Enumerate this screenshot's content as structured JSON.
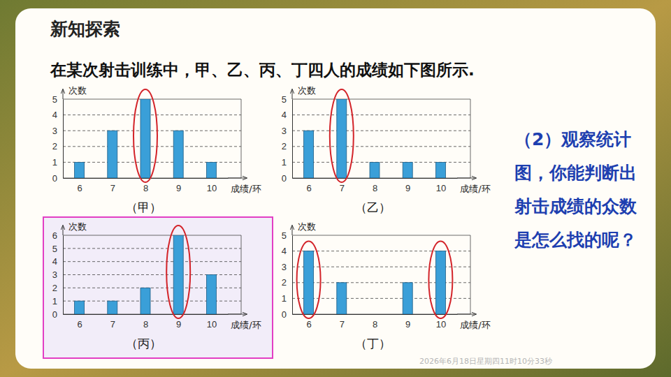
{
  "header": {
    "title": "新知探索"
  },
  "intro": "在某次射击训练中，甲、乙、丙、丁四人的成绩如下图所示.",
  "question": "（2）观察统计图，你能判断出射击成绩的众数是怎么找的呢？",
  "timestamp": "2026年6月18日星期四11时10分33秒",
  "chart_data": [
    {
      "type": "bar",
      "title": "（甲）",
      "categories": [
        "6",
        "7",
        "8",
        "9",
        "10"
      ],
      "values": [
        1,
        3,
        5,
        3,
        1
      ],
      "xlabel": "成绩/环",
      "ylabel": "次数",
      "ylim": [
        0,
        5
      ],
      "yticks": [
        0,
        1,
        2,
        3,
        4,
        5
      ],
      "grid": true,
      "color": "#3a9fd8"
    },
    {
      "type": "bar",
      "title": "（乙）",
      "categories": [
        "6",
        "7",
        "8",
        "9",
        "10"
      ],
      "values": [
        3,
        5,
        1,
        1,
        1
      ],
      "xlabel": "成绩/环",
      "ylabel": "次数",
      "ylim": [
        0,
        5
      ],
      "yticks": [
        0,
        1,
        2,
        3,
        4,
        5
      ],
      "grid": true,
      "color": "#3a9fd8"
    },
    {
      "type": "bar",
      "title": "（丙）",
      "categories": [
        "6",
        "7",
        "8",
        "9",
        "10"
      ],
      "values": [
        1,
        1,
        2,
        6,
        3
      ],
      "xlabel": "成绩/环",
      "ylabel": "次数",
      "ylim": [
        0,
        6
      ],
      "yticks": [
        0,
        1,
        2,
        3,
        4,
        5,
        6
      ],
      "grid": true,
      "color": "#3a9fd8"
    },
    {
      "type": "bar",
      "title": "（丁）",
      "categories": [
        "6",
        "7",
        "8",
        "9",
        "10"
      ],
      "values": [
        4,
        2,
        0,
        2,
        4
      ],
      "xlabel": "成绩/环",
      "ylabel": "次数",
      "ylim": [
        0,
        5
      ],
      "yticks": [
        0,
        1,
        2,
        3,
        4,
        5
      ],
      "grid": true,
      "color": "#3a9fd8"
    }
  ]
}
